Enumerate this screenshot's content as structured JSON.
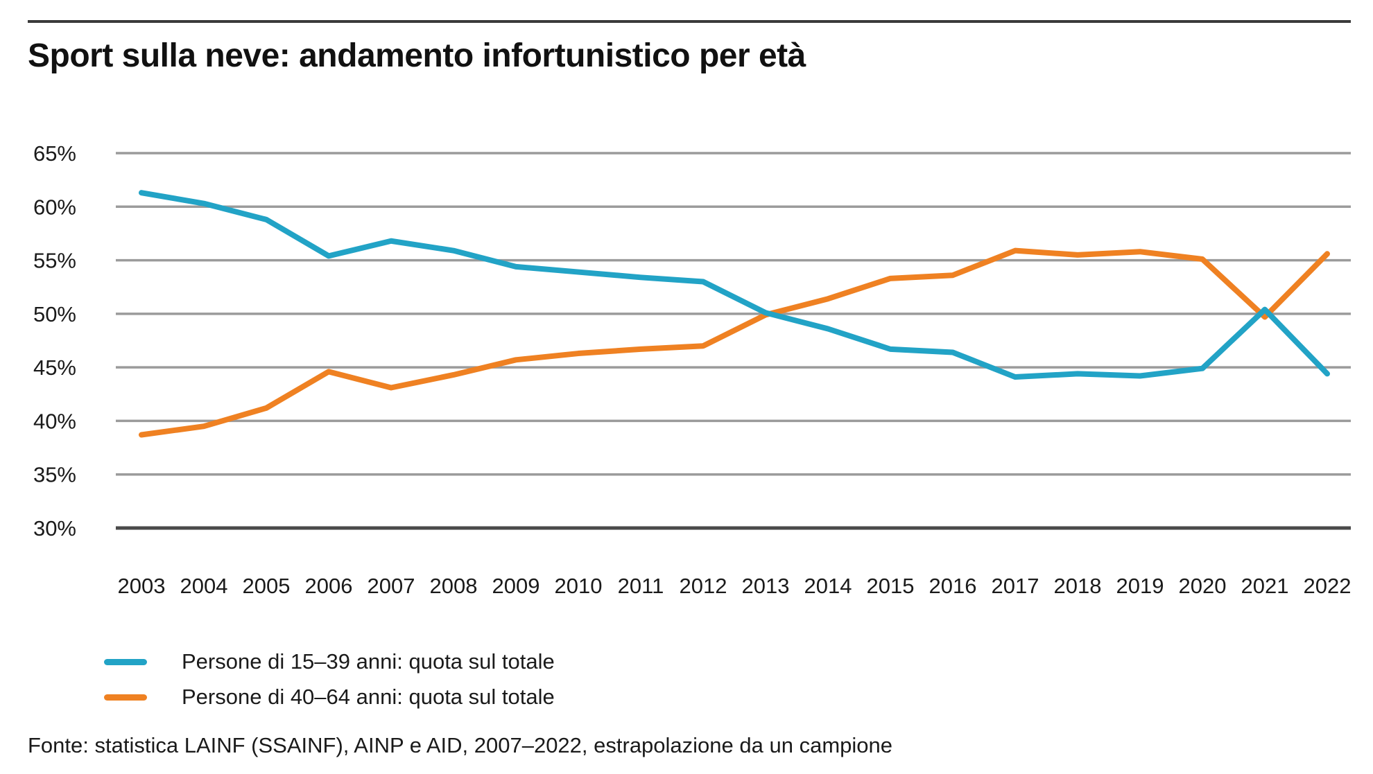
{
  "page": {
    "title": "Sport sulla neve: andamento infortunistico per età",
    "source": "Fonte: statistica LAINF (SSAINF), AINP e AID, 2007–2022, estrapolazione da un campione"
  },
  "colors": {
    "series_blue": "#22a3c6",
    "series_orange": "#ef8122",
    "grid": "#9b9b9b",
    "axis_bottom": "#4a4a4a",
    "top_rule": "#3a3a3a",
    "text": "#1a1a1a"
  },
  "chart_data": {
    "type": "line",
    "x": [
      2003,
      2004,
      2005,
      2006,
      2007,
      2008,
      2009,
      2010,
      2011,
      2012,
      2013,
      2014,
      2015,
      2016,
      2017,
      2018,
      2019,
      2020,
      2021,
      2022
    ],
    "series": [
      {
        "name": "Persone di 15–39 anni: quota sul totale",
        "color_key": "series_blue",
        "values": [
          61.3,
          60.3,
          58.8,
          55.4,
          56.8,
          55.9,
          54.4,
          53.9,
          53.4,
          53.0,
          50.1,
          48.6,
          46.7,
          46.4,
          44.1,
          44.4,
          44.2,
          44.9,
          50.4,
          44.4
        ]
      },
      {
        "name": "Persone di 40–64 anni: quota sul totale",
        "color_key": "series_orange",
        "values": [
          38.7,
          39.5,
          41.2,
          44.6,
          43.1,
          44.3,
          45.7,
          46.3,
          46.7,
          47.0,
          49.9,
          51.4,
          53.3,
          53.6,
          55.9,
          55.5,
          55.8,
          55.1,
          49.7,
          55.6
        ]
      }
    ],
    "ylim": [
      30,
      65
    ],
    "ytick_step": 5,
    "ytick_suffix": "%",
    "grid": "horizontal",
    "legend_position": "bottom-left",
    "xlabel": "",
    "ylabel": ""
  }
}
